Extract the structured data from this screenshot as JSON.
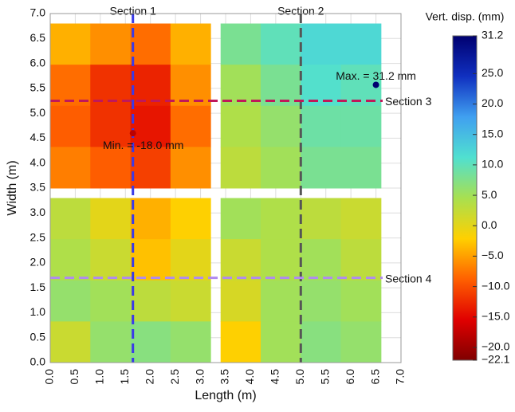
{
  "chart_data": {
    "type": "heatmap",
    "xlabel": "Length (m)",
    "ylabel": "Width (m)",
    "xlim": [
      0,
      7
    ],
    "ylim": [
      0,
      7
    ],
    "xticks": [
      {
        "value": 0,
        "label": "0.0"
      },
      0.5,
      {
        "value": 1,
        "label": "1.0"
      },
      1.5,
      {
        "value": 2,
        "label": "2.0"
      },
      2.5,
      {
        "value": 3,
        "label": "3.0"
      },
      3.5,
      {
        "value": 4,
        "label": "4.0"
      },
      4.5,
      {
        "value": 5,
        "label": "5.0"
      },
      5.5,
      {
        "value": 6,
        "label": "6.0"
      },
      6.5,
      {
        "value": 7,
        "label": "7.0"
      }
    ],
    "yticks": [
      {
        "value": 0,
        "label": "0.0"
      },
      0.5,
      {
        "value": 1,
        "label": "1.0"
      },
      1.5,
      {
        "value": 2,
        "label": "2.0"
      },
      2.5,
      {
        "value": 3,
        "label": "3.0"
      },
      3.5,
      {
        "value": 4,
        "label": "4.0"
      },
      4.5,
      {
        "value": 5,
        "label": "5.0"
      },
      5.5,
      {
        "value": 6,
        "label": "6.0"
      },
      6.5,
      {
        "value": 7,
        "label": "7.0"
      }
    ],
    "grid": true,
    "colorbar": {
      "title": "Vert. disp. (mm)",
      "lim": [
        -22.1,
        31.2
      ],
      "ticks": [
        {
          "value": -22.1,
          "label": "−22.1"
        },
        {
          "value": -20,
          "label": "−20.0"
        },
        {
          "value": -15,
          "label": "−15.0"
        },
        {
          "value": -10,
          "label": "−10.0"
        },
        {
          "value": -5,
          "label": "−5.0"
        },
        {
          "value": 0,
          "label": "0.0"
        },
        {
          "value": 5,
          "label": "5.0"
        },
        {
          "value": 10,
          "label": "10.0"
        },
        {
          "value": 15,
          "label": "15.0"
        },
        {
          "value": 20,
          "label": "20.0"
        },
        {
          "value": 25,
          "label": "25.0"
        },
        31.2
      ],
      "colors": [
        "#800000",
        "#e00000",
        "#ff6000",
        "#ffd000",
        "#a8e050",
        "#50e0d0",
        "#40a0f0",
        "#1030c0",
        "#000070"
      ]
    },
    "slabs": [
      {
        "x": [
          0,
          3.2
        ],
        "y": [
          3.5,
          6.8
        ],
        "values": [
          [
            -4,
            -6,
            -8,
            -4
          ],
          [
            -8,
            -12,
            -13,
            -6
          ],
          [
            -9,
            -12,
            -14,
            -8
          ],
          [
            -7,
            -9,
            -11,
            -6
          ]
        ]
      },
      {
        "x": [
          3.4,
          6.6
        ],
        "y": [
          3.5,
          6.8
        ],
        "values": [
          [
            8,
            10,
            12,
            12
          ],
          [
            5,
            8,
            11,
            10
          ],
          [
            4,
            6,
            9,
            9
          ],
          [
            3,
            5,
            8,
            8
          ]
        ]
      },
      {
        "x": [
          0,
          3.2
        ],
        "y": [
          0,
          3.3
        ],
        "values": [
          [
            3,
            0,
            -4,
            -2
          ],
          [
            4,
            2,
            -3,
            0
          ],
          [
            6,
            5,
            3,
            2
          ],
          [
            2,
            6,
            7,
            6
          ]
        ]
      },
      {
        "x": [
          3.4,
          6.6
        ],
        "y": [
          0,
          3.3
        ],
        "values": [
          [
            5,
            4,
            3,
            2
          ],
          [
            2,
            4,
            5,
            3
          ],
          [
            1,
            5,
            6,
            5
          ],
          [
            -2,
            5,
            7,
            6
          ]
        ]
      }
    ],
    "sections": [
      {
        "name": "Section 1",
        "x": 1.65,
        "color": "#3a3ae8"
      },
      {
        "name": "Section 2",
        "x": 5.0,
        "color": "#555555"
      },
      {
        "name": "Section 3",
        "y": 5.25,
        "color": "#c0185a"
      },
      {
        "name": "Section 4",
        "y": 1.7,
        "color": "#b08af0"
      }
    ],
    "annotations": [
      {
        "text": "Max. = 31.2 mm",
        "x": 6.5,
        "y": 5.57,
        "value": 31.2
      },
      {
        "text": "Min. = -18.0 mm",
        "x": 1.65,
        "y": 4.6,
        "value": -18.0
      }
    ]
  }
}
